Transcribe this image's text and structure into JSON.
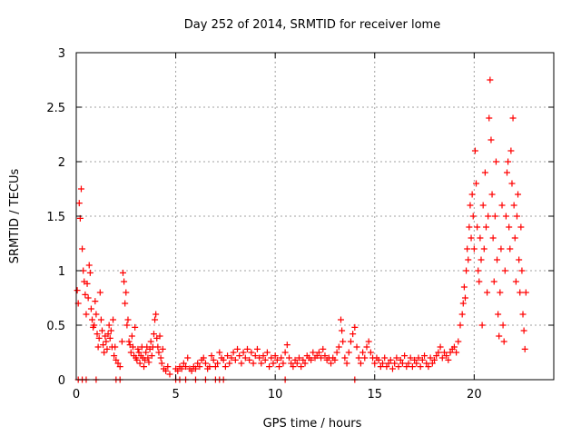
{
  "chart_data": {
    "type": "scatter",
    "title": "Day 252 of 2014, SRMTID for receiver lome",
    "xlabel": "GPS time / hours",
    "ylabel": "SRMTID / TECUs",
    "xlim": [
      0,
      24
    ],
    "ylim": [
      0,
      3
    ],
    "x_ticks": [
      0,
      5,
      10,
      15,
      20
    ],
    "x_tick_labels": [
      "0",
      "5",
      "10",
      "15",
      "20"
    ],
    "y_ticks": [
      0,
      0.5,
      1,
      1.5,
      2,
      2.5,
      3
    ],
    "y_tick_labels": [
      "0",
      "0.5",
      "1",
      "1.5",
      "2",
      "2.5",
      "3"
    ],
    "grid": true,
    "marker": "+",
    "series": [
      {
        "name": "SRMTID",
        "color": "#ff0000",
        "points": [
          [
            0.05,
            0.82
          ],
          [
            0.1,
            0.7
          ],
          [
            0.15,
            1.62
          ],
          [
            0.2,
            1.48
          ],
          [
            0.25,
            1.75
          ],
          [
            0.3,
            1.2
          ],
          [
            0.35,
            1.0
          ],
          [
            0.4,
            0.9
          ],
          [
            0.45,
            0.78
          ],
          [
            0.5,
            0.6
          ],
          [
            0.55,
            0.88
          ],
          [
            0.6,
            0.75
          ],
          [
            0.65,
            1.05
          ],
          [
            0.7,
            0.98
          ],
          [
            0.75,
            0.65
          ],
          [
            0.8,
            0.55
          ],
          [
            0.85,
            0.48
          ],
          [
            0.9,
            0.5
          ],
          [
            0.95,
            0.72
          ],
          [
            1.0,
            0.6
          ],
          [
            1.05,
            0.42
          ],
          [
            1.1,
            0.3
          ],
          [
            1.15,
            0.38
          ],
          [
            1.2,
            0.8
          ],
          [
            1.25,
            0.55
          ],
          [
            1.3,
            0.45
          ],
          [
            1.35,
            0.32
          ],
          [
            1.4,
            0.25
          ],
          [
            1.45,
            0.4
          ],
          [
            1.5,
            0.35
          ],
          [
            1.55,
            0.28
          ],
          [
            1.6,
            0.42
          ],
          [
            1.65,
            0.5
          ],
          [
            1.7,
            0.38
          ],
          [
            1.75,
            0.45
          ],
          [
            1.8,
            0.3
          ],
          [
            1.85,
            0.55
          ],
          [
            1.9,
            0.22
          ],
          [
            1.95,
            0.3
          ],
          [
            2.0,
            0.18
          ],
          [
            2.1,
            0.15
          ],
          [
            2.2,
            0.12
          ],
          [
            2.3,
            0.35
          ],
          [
            2.35,
            0.98
          ],
          [
            2.4,
            0.9
          ],
          [
            2.45,
            0.7
          ],
          [
            2.5,
            0.8
          ],
          [
            2.55,
            0.5
          ],
          [
            2.6,
            0.55
          ],
          [
            2.65,
            0.35
          ],
          [
            2.7,
            0.32
          ],
          [
            2.75,
            0.25
          ],
          [
            2.8,
            0.4
          ],
          [
            2.85,
            0.3
          ],
          [
            2.9,
            0.22
          ],
          [
            2.95,
            0.48
          ],
          [
            3.0,
            0.2
          ],
          [
            3.05,
            0.18
          ],
          [
            3.1,
            0.28
          ],
          [
            3.15,
            0.25
          ],
          [
            3.2,
            0.15
          ],
          [
            3.25,
            0.22
          ],
          [
            3.3,
            0.3
          ],
          [
            3.35,
            0.2
          ],
          [
            3.4,
            0.12
          ],
          [
            3.45,
            0.18
          ],
          [
            3.5,
            0.25
          ],
          [
            3.55,
            0.3
          ],
          [
            3.6,
            0.2
          ],
          [
            3.65,
            0.16
          ],
          [
            3.7,
            0.28
          ],
          [
            3.75,
            0.35
          ],
          [
            3.8,
            0.22
          ],
          [
            3.85,
            0.3
          ],
          [
            3.9,
            0.42
          ],
          [
            3.95,
            0.55
          ],
          [
            4.0,
            0.6
          ],
          [
            4.05,
            0.38
          ],
          [
            4.1,
            0.3
          ],
          [
            4.15,
            0.25
          ],
          [
            4.2,
            0.4
          ],
          [
            4.25,
            0.2
          ],
          [
            4.3,
            0.15
          ],
          [
            4.35,
            0.28
          ],
          [
            4.4,
            0.1
          ],
          [
            4.5,
            0.08
          ],
          [
            4.6,
            0.12
          ],
          [
            4.7,
            0.05
          ],
          [
            5.0,
            0.1
          ],
          [
            5.1,
            0.08
          ],
          [
            5.2,
            0.12
          ],
          [
            5.3,
            0.1
          ],
          [
            5.4,
            0.15
          ],
          [
            5.5,
            0.12
          ],
          [
            5.6,
            0.2
          ],
          [
            5.7,
            0.1
          ],
          [
            5.8,
            0.08
          ],
          [
            5.9,
            0.12
          ],
          [
            6.0,
            0.1
          ],
          [
            6.1,
            0.15
          ],
          [
            6.2,
            0.12
          ],
          [
            6.3,
            0.18
          ],
          [
            6.4,
            0.2
          ],
          [
            6.5,
            0.15
          ],
          [
            6.6,
            0.1
          ],
          [
            6.7,
            0.12
          ],
          [
            6.8,
            0.22
          ],
          [
            6.9,
            0.18
          ],
          [
            7.0,
            0.12
          ],
          [
            7.1,
            0.15
          ],
          [
            7.2,
            0.25
          ],
          [
            7.3,
            0.2
          ],
          [
            7.4,
            0.18
          ],
          [
            7.5,
            0.12
          ],
          [
            7.6,
            0.22
          ],
          [
            7.7,
            0.15
          ],
          [
            7.8,
            0.2
          ],
          [
            7.9,
            0.25
          ],
          [
            8.0,
            0.18
          ],
          [
            8.1,
            0.28
          ],
          [
            8.2,
            0.22
          ],
          [
            8.3,
            0.15
          ],
          [
            8.4,
            0.25
          ],
          [
            8.5,
            0.2
          ],
          [
            8.6,
            0.28
          ],
          [
            8.7,
            0.18
          ],
          [
            8.8,
            0.25
          ],
          [
            8.9,
            0.15
          ],
          [
            9.0,
            0.22
          ],
          [
            9.1,
            0.28
          ],
          [
            9.2,
            0.2
          ],
          [
            9.3,
            0.15
          ],
          [
            9.4,
            0.22
          ],
          [
            9.5,
            0.18
          ],
          [
            9.6,
            0.25
          ],
          [
            9.7,
            0.12
          ],
          [
            9.8,
            0.2
          ],
          [
            9.9,
            0.15
          ],
          [
            10.0,
            0.22
          ],
          [
            10.1,
            0.18
          ],
          [
            10.2,
            0.12
          ],
          [
            10.3,
            0.2
          ],
          [
            10.4,
            0.15
          ],
          [
            10.5,
            0.25
          ],
          [
            10.6,
            0.32
          ],
          [
            10.7,
            0.2
          ],
          [
            10.8,
            0.15
          ],
          [
            10.9,
            0.12
          ],
          [
            11.0,
            0.18
          ],
          [
            11.1,
            0.15
          ],
          [
            11.2,
            0.2
          ],
          [
            11.3,
            0.12
          ],
          [
            11.4,
            0.18
          ],
          [
            11.5,
            0.15
          ],
          [
            11.6,
            0.22
          ],
          [
            11.7,
            0.2
          ],
          [
            11.8,
            0.18
          ],
          [
            11.9,
            0.25
          ],
          [
            12.0,
            0.2
          ],
          [
            12.1,
            0.22
          ],
          [
            12.2,
            0.25
          ],
          [
            12.3,
            0.2
          ],
          [
            12.4,
            0.28
          ],
          [
            12.5,
            0.22
          ],
          [
            12.6,
            0.18
          ],
          [
            12.7,
            0.2
          ],
          [
            12.8,
            0.15
          ],
          [
            12.9,
            0.2
          ],
          [
            13.0,
            0.18
          ],
          [
            13.1,
            0.25
          ],
          [
            13.2,
            0.3
          ],
          [
            13.3,
            0.55
          ],
          [
            13.35,
            0.45
          ],
          [
            13.4,
            0.35
          ],
          [
            13.5,
            0.2
          ],
          [
            13.6,
            0.15
          ],
          [
            13.7,
            0.25
          ],
          [
            13.8,
            0.35
          ],
          [
            13.9,
            0.42
          ],
          [
            14.0,
            0.48
          ],
          [
            14.1,
            0.3
          ],
          [
            14.2,
            0.2
          ],
          [
            14.3,
            0.15
          ],
          [
            14.4,
            0.25
          ],
          [
            14.5,
            0.2
          ],
          [
            14.6,
            0.3
          ],
          [
            14.7,
            0.35
          ],
          [
            14.8,
            0.25
          ],
          [
            14.9,
            0.2
          ],
          [
            15.0,
            0.15
          ],
          [
            15.1,
            0.2
          ],
          [
            15.2,
            0.18
          ],
          [
            15.3,
            0.12
          ],
          [
            15.4,
            0.15
          ],
          [
            15.5,
            0.2
          ],
          [
            15.6,
            0.12
          ],
          [
            15.7,
            0.15
          ],
          [
            15.8,
            0.18
          ],
          [
            15.9,
            0.1
          ],
          [
            16.0,
            0.15
          ],
          [
            16.1,
            0.2
          ],
          [
            16.2,
            0.12
          ],
          [
            16.3,
            0.18
          ],
          [
            16.4,
            0.15
          ],
          [
            16.5,
            0.22
          ],
          [
            16.6,
            0.12
          ],
          [
            16.7,
            0.15
          ],
          [
            16.8,
            0.2
          ],
          [
            16.9,
            0.12
          ],
          [
            17.0,
            0.18
          ],
          [
            17.1,
            0.15
          ],
          [
            17.2,
            0.2
          ],
          [
            17.3,
            0.12
          ],
          [
            17.4,
            0.18
          ],
          [
            17.5,
            0.22
          ],
          [
            17.6,
            0.15
          ],
          [
            17.7,
            0.12
          ],
          [
            17.8,
            0.2
          ],
          [
            17.9,
            0.15
          ],
          [
            18.0,
            0.18
          ],
          [
            18.1,
            0.22
          ],
          [
            18.2,
            0.25
          ],
          [
            18.3,
            0.3
          ],
          [
            18.4,
            0.2
          ],
          [
            18.5,
            0.25
          ],
          [
            18.6,
            0.22
          ],
          [
            18.7,
            0.18
          ],
          [
            18.8,
            0.25
          ],
          [
            18.9,
            0.28
          ],
          [
            19.0,
            0.3
          ],
          [
            19.1,
            0.25
          ],
          [
            19.2,
            0.35
          ],
          [
            19.3,
            0.5
          ],
          [
            19.4,
            0.6
          ],
          [
            19.45,
            0.7
          ],
          [
            19.5,
            0.85
          ],
          [
            19.55,
            0.75
          ],
          [
            19.6,
            1.0
          ],
          [
            19.65,
            1.2
          ],
          [
            19.7,
            1.1
          ],
          [
            19.75,
            1.4
          ],
          [
            19.8,
            1.6
          ],
          [
            19.85,
            1.3
          ],
          [
            19.9,
            1.7
          ],
          [
            19.95,
            1.5
          ],
          [
            20.0,
            1.2
          ],
          [
            20.05,
            2.1
          ],
          [
            20.1,
            1.8
          ],
          [
            20.15,
            1.4
          ],
          [
            20.2,
            1.0
          ],
          [
            20.25,
            0.9
          ],
          [
            20.3,
            1.3
          ],
          [
            20.35,
            1.1
          ],
          [
            20.4,
            0.5
          ],
          [
            20.45,
            1.6
          ],
          [
            20.5,
            1.2
          ],
          [
            20.55,
            1.9
          ],
          [
            20.6,
            1.4
          ],
          [
            20.65,
            0.8
          ],
          [
            20.7,
            1.5
          ],
          [
            20.75,
            2.4
          ],
          [
            20.8,
            2.75
          ],
          [
            20.85,
            2.2
          ],
          [
            20.9,
            1.7
          ],
          [
            20.95,
            1.3
          ],
          [
            21.0,
            0.9
          ],
          [
            21.05,
            1.5
          ],
          [
            21.1,
            2.0
          ],
          [
            21.15,
            1.1
          ],
          [
            21.2,
            0.6
          ],
          [
            21.25,
            0.4
          ],
          [
            21.3,
            0.8
          ],
          [
            21.35,
            1.2
          ],
          [
            21.4,
            1.6
          ],
          [
            21.45,
            0.5
          ],
          [
            21.5,
            0.35
          ],
          [
            21.55,
            1.0
          ],
          [
            21.6,
            1.5
          ],
          [
            21.65,
            1.9
          ],
          [
            21.7,
            2.0
          ],
          [
            21.75,
            1.4
          ],
          [
            21.8,
            1.2
          ],
          [
            21.85,
            2.1
          ],
          [
            21.9,
            1.8
          ],
          [
            21.95,
            2.4
          ],
          [
            22.0,
            1.6
          ],
          [
            22.05,
            1.3
          ],
          [
            22.1,
            0.9
          ],
          [
            22.15,
            1.5
          ],
          [
            22.2,
            1.7
          ],
          [
            22.25,
            1.1
          ],
          [
            22.3,
            0.8
          ],
          [
            22.35,
            1.4
          ],
          [
            22.4,
            1.0
          ],
          [
            22.45,
            0.6
          ],
          [
            22.5,
            0.45
          ],
          [
            22.55,
            0.28
          ],
          [
            22.6,
            0.8
          ],
          [
            0.1,
            0.0
          ],
          [
            0.3,
            0.0
          ],
          [
            0.5,
            0.0
          ],
          [
            1.0,
            0.0
          ],
          [
            2.0,
            0.0
          ],
          [
            2.2,
            0.0
          ],
          [
            5.0,
            0.0
          ],
          [
            5.2,
            0.0
          ],
          [
            5.5,
            0.0
          ],
          [
            6.0,
            0.0
          ],
          [
            6.5,
            0.0
          ],
          [
            7.0,
            0.0
          ],
          [
            7.2,
            0.0
          ],
          [
            7.4,
            0.0
          ],
          [
            10.5,
            0.0
          ],
          [
            14.0,
            0.0
          ]
        ]
      }
    ]
  }
}
